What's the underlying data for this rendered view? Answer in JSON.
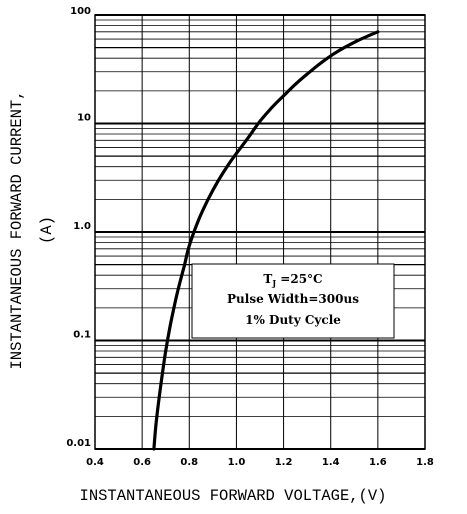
{
  "chart_data": {
    "type": "line",
    "title": "",
    "xlabel": "INSTANTANEOUS FORWARD VOLTAGE,(V)",
    "ylabel": [
      "INSTANTANEOUS FORWARD CURRENT,",
      "(A)"
    ],
    "xscale": "linear",
    "yscale": "log",
    "xlim": [
      0.4,
      1.8
    ],
    "ylim": [
      0.01,
      100
    ],
    "x_ticks": [
      0.4,
      0.6,
      0.8,
      1.0,
      1.2,
      1.4,
      1.6,
      1.8
    ],
    "x_tick_labels": [
      "0.4",
      "0.6",
      "0.8",
      "1.0",
      "1.2",
      "1.4",
      "1.6",
      "1.8"
    ],
    "y_ticks": [
      0.01,
      0.1,
      1.0,
      10,
      100
    ],
    "y_tick_labels": [
      "0.01",
      "0.1",
      "1.0",
      "10",
      "100"
    ],
    "grid": true,
    "annotation": {
      "lines": [
        [
          "T",
          "J",
          " =25°C"
        ],
        [
          "Pulse Width=300us"
        ],
        [
          "1% Duty Cycle"
        ]
      ]
    },
    "series": [
      {
        "x": [
          0.65,
          0.66,
          0.68,
          0.7,
          0.72,
          0.75,
          0.78,
          0.8,
          0.84,
          0.88,
          0.92,
          0.96,
          1.0,
          1.05,
          1.1,
          1.15,
          1.2,
          1.25,
          1.3,
          1.35,
          1.4,
          1.45,
          1.5,
          1.55,
          1.6
        ],
        "y": [
          0.01,
          0.018,
          0.04,
          0.08,
          0.14,
          0.28,
          0.5,
          0.75,
          1.3,
          2.0,
          2.9,
          4.0,
          5.3,
          7.4,
          10.5,
          14.0,
          18.0,
          23.0,
          28.5,
          35.0,
          42.0,
          49.0,
          56.0,
          63.0,
          70.0
        ]
      }
    ]
  }
}
